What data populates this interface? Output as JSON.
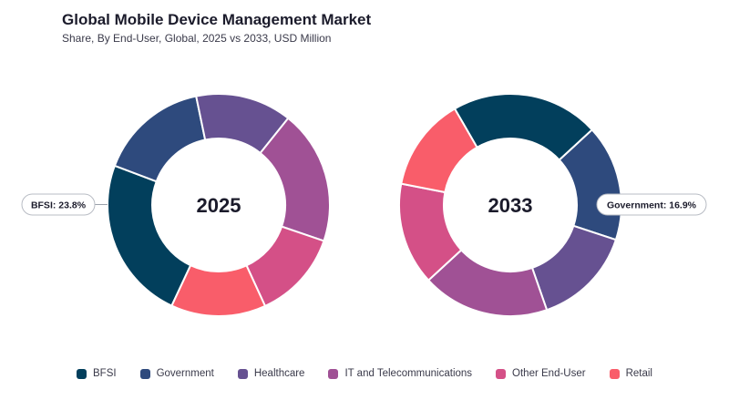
{
  "header": {
    "title": "Global Mobile Device Management Market",
    "subtitle": "Share, By End-User, Global, 2025 vs 2033, USD Million"
  },
  "chart_data": [
    {
      "type": "pie",
      "donut": true,
      "center_label": "2025",
      "categories": [
        "BFSI",
        "Government",
        "Healthcare",
        "IT and Telecommunications",
        "Other End-User",
        "Retail"
      ],
      "values": [
        23.8,
        16.0,
        14.0,
        19.5,
        12.9,
        13.8
      ],
      "callout": {
        "category": "BFSI",
        "text": "BFSI: 23.8%"
      }
    },
    {
      "type": "pie",
      "donut": true,
      "center_label": "2033",
      "categories": [
        "BFSI",
        "Government",
        "Healthcare",
        "IT and Telecommunications",
        "Other End-User",
        "Retail"
      ],
      "values": [
        21.5,
        16.9,
        14.6,
        18.5,
        14.9,
        13.6
      ],
      "callout": {
        "category": "Government",
        "text": "Government: 16.9%"
      }
    }
  ],
  "legend": {
    "placement": "bottom",
    "items": [
      {
        "label": "BFSI",
        "color": "#023f5c"
      },
      {
        "label": "Government",
        "color": "#2e4a7d"
      },
      {
        "label": "Healthcare",
        "color": "#665191"
      },
      {
        "label": "IT and Telecommunications",
        "color": "#a05195"
      },
      {
        "label": "Other End-User",
        "color": "#d45087"
      },
      {
        "label": "Retail",
        "color": "#f95d6a"
      }
    ]
  }
}
